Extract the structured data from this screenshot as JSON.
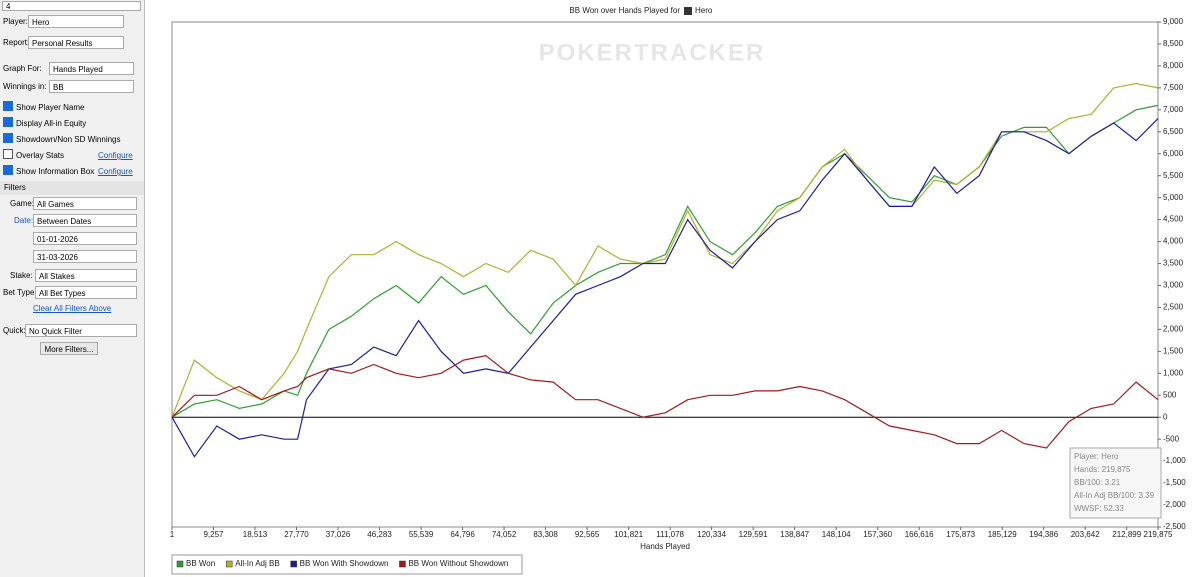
{
  "sidebar": {
    "search": "4",
    "player_label": "Player:",
    "player": "Hero",
    "report_label": "Report:",
    "report": "Personal Results",
    "graph_for_label": "Graph For:",
    "graph_for": "Hands Played",
    "winnings_label": "Winnings in:",
    "winnings": "BB",
    "options": [
      {
        "label": "Show Player Name",
        "checked": true
      },
      {
        "label": "Display All-in Equity",
        "checked": true
      },
      {
        "label": "Showdown/Non SD Winnings",
        "checked": true
      },
      {
        "label": "Overlay Stats",
        "checked": false,
        "link": "Configure"
      },
      {
        "label": "Show Information Box",
        "checked": true,
        "link": "Configure"
      }
    ],
    "filters_title": "Filters",
    "game_label": "Game:",
    "game": "All Games",
    "date_label": "Date:",
    "date": "Between Dates",
    "date_from": "01-01-2026",
    "date_to": "31-03-2026",
    "stake_label": "Stake:",
    "stake": "All Stakes",
    "bet_type_label": "Bet Type:",
    "bet_type": "All Bet Types",
    "clear": "Clear All Filters Above",
    "quick_label": "Quick:",
    "quick": "No Quick Filter",
    "more": "More Filters..."
  },
  "chart_data": {
    "type": "line",
    "title": "BB Won over Hands Played for",
    "title_player": "Hero",
    "watermark": "POKERTRACKER",
    "x_label": "Hands Played",
    "x": [
      1,
      5000,
      10000,
      15000,
      20000,
      25000,
      28000,
      30000,
      35000,
      40000,
      45000,
      50000,
      55000,
      60000,
      65000,
      70000,
      75000,
      80000,
      85000,
      90000,
      95000,
      100000,
      105000,
      110000,
      115000,
      120000,
      125000,
      130000,
      135000,
      140000,
      145000,
      150000,
      155000,
      160000,
      165000,
      170000,
      175000,
      180000,
      185000,
      190000,
      195000,
      200000,
      205000,
      210000,
      215000,
      219875
    ],
    "series": [
      {
        "name": "BB Won",
        "color": "#2f9e2f",
        "values": [
          0,
          300,
          400,
          200,
          300,
          600,
          500,
          1000,
          2000,
          2300,
          2700,
          3000,
          2600,
          3200,
          2800,
          3000,
          2400,
          1900,
          2600,
          3000,
          3300,
          3500,
          3500,
          3700,
          4800,
          4000,
          3700,
          4200,
          4800,
          5000,
          5700,
          6000,
          5500,
          5000,
          4900,
          5500,
          5300,
          5700,
          6400,
          6600,
          6600,
          6000,
          6400,
          6700,
          7000,
          7100
        ]
      },
      {
        "name": "All-In Adj BB",
        "color": "#b5ad2e",
        "values": [
          0,
          1300,
          900,
          600,
          400,
          1000,
          1500,
          2000,
          3200,
          3700,
          3700,
          4000,
          3700,
          3500,
          3200,
          3500,
          3300,
          3800,
          3600,
          3000,
          3900,
          3600,
          3500,
          3600,
          4700,
          3700,
          3500,
          4000,
          4700,
          5000,
          5700,
          6100,
          5400,
          4800,
          4800,
          5400,
          5300,
          5700,
          6500,
          6500,
          6500,
          6800,
          6900,
          7500,
          7600,
          7500
        ]
      },
      {
        "name": "BB Won With Showdown",
        "color": "#1c1ca0",
        "values": [
          0,
          -900,
          -200,
          -500,
          -400,
          -500,
          -500,
          400,
          1100,
          1200,
          1600,
          1400,
          2200,
          1500,
          1000,
          1100,
          1000,
          1600,
          2200,
          2800,
          3000,
          3200,
          3500,
          3500,
          4500,
          3800,
          3400,
          4000,
          4500,
          4700,
          5400,
          6000,
          5400,
          4800,
          4800,
          5700,
          5100,
          5500,
          6500,
          6500,
          6300,
          6000,
          6400,
          6700,
          6300,
          6800
        ]
      },
      {
        "name": "BB Won Without Showdown",
        "color": "#a01a1a",
        "values": [
          0,
          500,
          500,
          700,
          400,
          600,
          700,
          900,
          1100,
          1000,
          1200,
          1000,
          900,
          1000,
          1300,
          1400,
          1000,
          850,
          800,
          400,
          400,
          200,
          0,
          100,
          400,
          500,
          500,
          600,
          600,
          700,
          600,
          400,
          100,
          -200,
          -300,
          -400,
          -600,
          -600,
          -300,
          -600,
          -700,
          -100,
          200,
          300,
          800,
          400
        ]
      }
    ],
    "xlim": [
      1,
      219875
    ],
    "xticks": [
      1,
      {
        "value": 9257,
        "label": "9,257"
      },
      {
        "value": 18513,
        "label": "18,513"
      },
      {
        "value": 27770,
        "label": "27,770"
      },
      {
        "value": 37026,
        "label": "37,026"
      },
      {
        "value": 46283,
        "label": "46,283"
      },
      {
        "value": 55539,
        "label": "55,539"
      },
      {
        "value": 64796,
        "label": "64,796"
      },
      {
        "value": 74052,
        "label": "74,052"
      },
      {
        "value": 83308,
        "label": "83,308"
      },
      {
        "value": 92565,
        "label": "92,565"
      },
      {
        "value": 101821,
        "label": "101,821"
      },
      {
        "value": 111078,
        "label": "111,078"
      },
      {
        "value": 120334,
        "label": "120,334"
      },
      {
        "value": 129591,
        "label": "129,591"
      },
      {
        "value": 138847,
        "label": "138,847"
      },
      {
        "value": 148104,
        "label": "148,104"
      },
      {
        "value": 157360,
        "label": "157,360"
      },
      {
        "value": 166616,
        "label": "166,616"
      },
      {
        "value": 175873,
        "label": "175,873"
      },
      {
        "value": 185129,
        "label": "185,129"
      },
      {
        "value": 194386,
        "label": "194,386"
      },
      {
        "value": 203642,
        "label": "203,642"
      },
      {
        "value": 212899,
        "label": "212,899"
      },
      {
        "value": 219875,
        "label": "219,875"
      }
    ],
    "ylim": [
      -2500,
      9000
    ],
    "yticks": [
      {
        "value": -2500,
        "label": "-2,500"
      },
      {
        "value": -2000,
        "label": "-2,000"
      },
      {
        "value": -1500,
        "label": "-1,500"
      },
      {
        "value": -1000,
        "label": "-1,000"
      },
      -500,
      0,
      500,
      {
        "value": 1000,
        "label": "1,000"
      },
      {
        "value": 1500,
        "label": "1,500"
      },
      {
        "value": 2000,
        "label": "2,000"
      },
      {
        "value": 2500,
        "label": "2,500"
      },
      {
        "value": 3000,
        "label": "3,000"
      },
      {
        "value": 3500,
        "label": "3,500"
      },
      {
        "value": 4000,
        "label": "4,000"
      },
      {
        "value": 4500,
        "label": "4,500"
      },
      {
        "value": 5000,
        "label": "5,000"
      },
      {
        "value": 5500,
        "label": "5,500"
      },
      {
        "value": 6000,
        "label": "6,000"
      },
      {
        "value": 6500,
        "label": "6,500"
      },
      {
        "value": 7000,
        "label": "7,000"
      },
      {
        "value": 7500,
        "label": "7,500"
      },
      {
        "value": 8000,
        "label": "8,000"
      },
      {
        "value": 8500,
        "label": "8,500"
      },
      {
        "value": 9000,
        "label": "9,000"
      }
    ],
    "info_box": [
      "Player: Hero",
      "Hands: 219,875",
      "BB/100: 3.21",
      "All-In Adj BB/100: 3.39",
      "WWSF: 52.33"
    ]
  }
}
